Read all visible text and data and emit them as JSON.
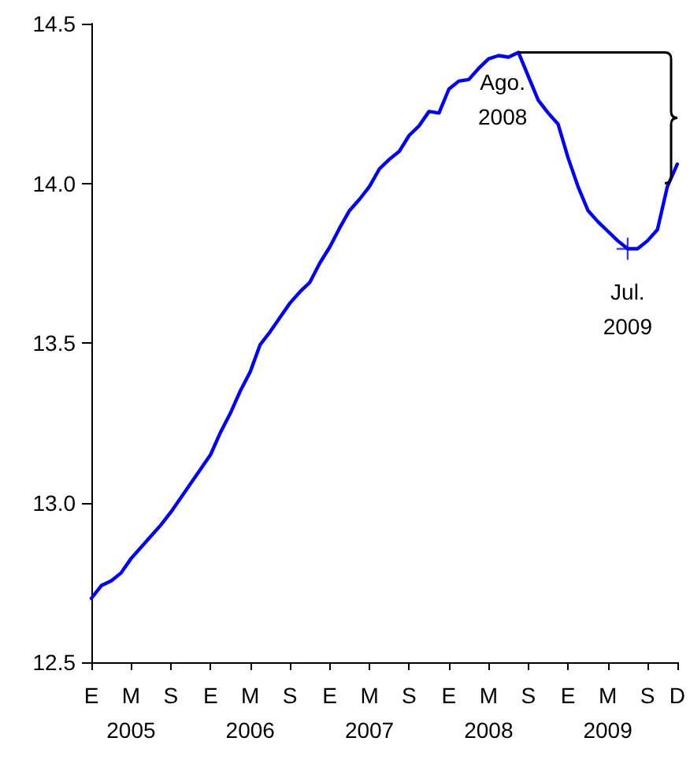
{
  "chart_data": {
    "type": "line",
    "categories": [
      "E",
      null,
      null,
      null,
      "M\n2005",
      null,
      null,
      null,
      "S",
      null,
      null,
      null,
      "E",
      null,
      null,
      null,
      "M\n2006",
      null,
      null,
      null,
      "S",
      null,
      null,
      null,
      "E",
      null,
      null,
      null,
      "M\n2007",
      null,
      null,
      null,
      "S",
      null,
      null,
      null,
      "E",
      null,
      null,
      null,
      "M\n2008",
      null,
      null,
      null,
      "S",
      null,
      null,
      null,
      "E",
      null,
      null,
      null,
      "M\n2009",
      null,
      null,
      null,
      "S",
      null,
      null,
      "D"
    ],
    "series": [
      {
        "color": "#0000ff",
        "values": [
          12.7,
          12.74,
          12.755,
          12.78,
          12.825,
          12.86,
          12.895,
          12.93,
          12.97,
          13.015,
          13.06,
          13.105,
          13.15,
          13.22,
          13.28,
          13.35,
          13.41,
          13.495,
          13.535,
          13.58,
          13.625,
          13.66,
          13.69,
          13.75,
          13.8,
          13.86,
          13.915,
          13.95,
          13.99,
          14.045,
          14.075,
          14.1,
          14.15,
          14.18,
          14.225,
          14.22,
          14.295,
          14.32,
          14.325,
          14.36,
          14.39,
          14.4,
          14.395,
          14.41,
          14.335,
          14.26,
          14.22,
          14.185,
          14.08,
          13.99,
          13.915,
          13.88,
          13.85,
          13.82,
          13.795,
          13.795,
          13.82,
          13.855,
          13.99,
          14.06
        ]
      },
      {
        "type": "scatter",
        "marker": "cross",
        "color": "#0000ff",
        "values": [
          null,
          null,
          null,
          null,
          null,
          null,
          null,
          null,
          null,
          null,
          null,
          null,
          null,
          null,
          null,
          null,
          null,
          null,
          null,
          null,
          null,
          null,
          null,
          null,
          null,
          null,
          null,
          null,
          null,
          null,
          null,
          null,
          null,
          null,
          null,
          null,
          null,
          null,
          null,
          null,
          null,
          null,
          null,
          null,
          null,
          null,
          null,
          null,
          null,
          null,
          null,
          null,
          null,
          null,
          13.795,
          null,
          null,
          null,
          null,
          null
        ]
      }
    ],
    "ylim": [
      12.5,
      14.5
    ],
    "yticks": [
      {
        "value": 12.5,
        "label": "12.5"
      },
      {
        "value": 13,
        "label": "13.0"
      },
      {
        "value": 13.5,
        "label": "13.5"
      },
      {
        "value": 14,
        "label": "14.0"
      },
      {
        "value": 14.5,
        "label": "14.5"
      }
    ],
    "annotations": [
      {
        "text": "Ago.\n2008",
        "y": 14.41
      },
      {
        "text": "Jul.\n2009",
        "y": 13.795
      }
    ],
    "grid": false,
    "marker": "none",
    "line_style": "solid"
  }
}
